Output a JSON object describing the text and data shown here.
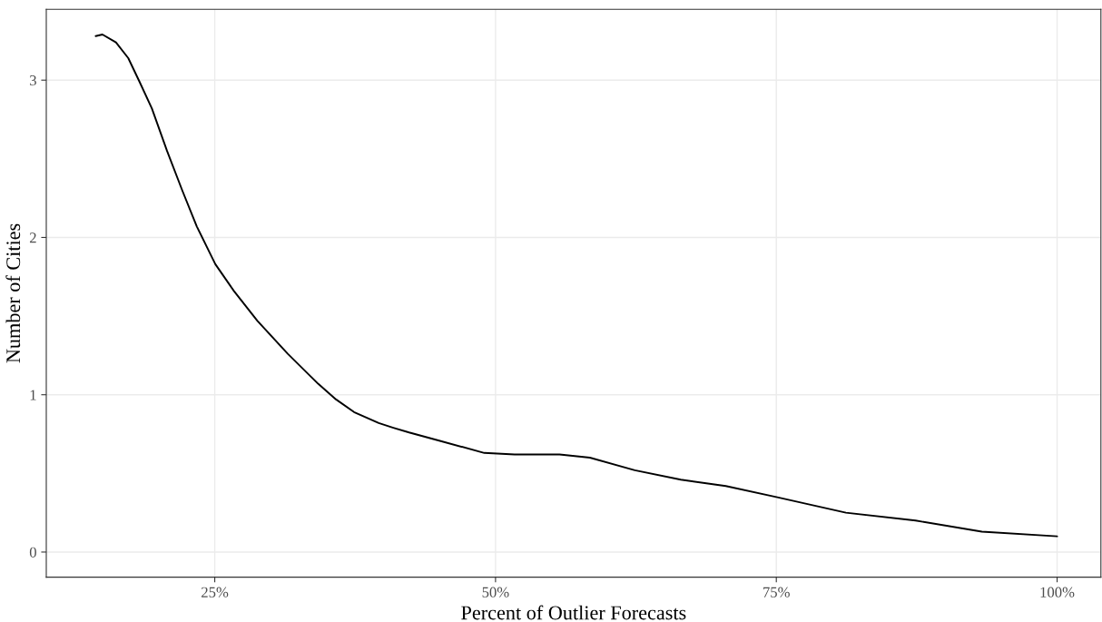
{
  "chart_data": {
    "type": "line",
    "xlabel": "Percent of Outlier Forecasts",
    "ylabel": "Number of Cities",
    "x": [
      14.4,
      15.0,
      16.2,
      17.3,
      18.3,
      19.4,
      20.75,
      22.1,
      23.4,
      25.05,
      26.7,
      28.8,
      31.5,
      34.2,
      35.8,
      37.4,
      39.6,
      40.9,
      42.3,
      44.9,
      49.0,
      51.7,
      55.7,
      58.4,
      62.4,
      66.5,
      70.5,
      75.0,
      81.2,
      87.4,
      93.3,
      100
    ],
    "series": [
      {
        "color": "#000000",
        "values": [
          3.28,
          3.29,
          3.24,
          3.14,
          2.99,
          2.82,
          2.55,
          2.3,
          2.07,
          1.83,
          1.66,
          1.47,
          1.26,
          1.07,
          0.97,
          0.89,
          0.82,
          0.79,
          0.76,
          0.71,
          0.63,
          0.62,
          0.62,
          0.6,
          0.52,
          0.46,
          0.42,
          0.35,
          0.25,
          0.2,
          0.13,
          0.1
        ]
      }
    ],
    "xlim": [
      10,
      103.9
    ],
    "ylim": [
      -0.16,
      3.45
    ],
    "xticks": [
      {
        "value": 25,
        "label": "25%"
      },
      {
        "value": 50,
        "label": "50%"
      },
      {
        "value": 75,
        "label": "75%"
      },
      {
        "value": 100,
        "label": "100%"
      }
    ],
    "yticks": [
      0,
      1,
      2,
      3
    ],
    "grid": true,
    "marker": "none",
    "line_style": "solid",
    "legend": false
  }
}
